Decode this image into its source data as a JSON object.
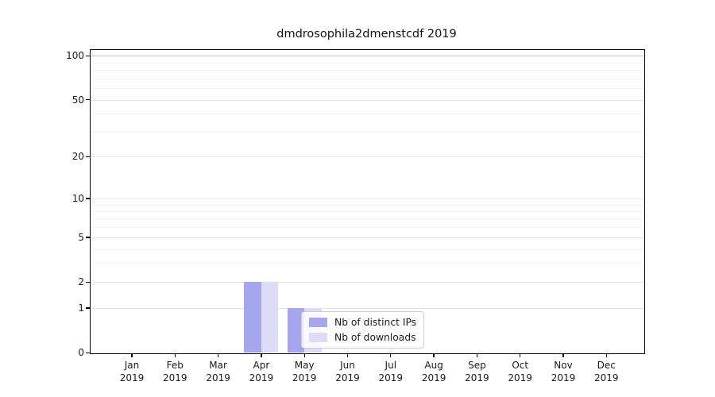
{
  "title": "dmdrosophila2dmenstcdf 2019",
  "chart_data": {
    "type": "bar",
    "title": "dmdrosophila2dmenstcdf 2019",
    "categories": [
      "Jan",
      "Feb",
      "Mar",
      "Apr",
      "May",
      "Jun",
      "Jul",
      "Aug",
      "Sep",
      "Oct",
      "Nov",
      "Dec"
    ],
    "category_year": "2019",
    "series": [
      {
        "name": "Nb of distinct IPs",
        "color": "#a6a6ef",
        "values": [
          0,
          0,
          0,
          2,
          1,
          0,
          0,
          0,
          0,
          0,
          0,
          0
        ]
      },
      {
        "name": "Nb of downloads",
        "color": "#dcdcf8",
        "values": [
          0,
          0,
          0,
          2,
          1,
          0,
          0,
          0,
          0,
          0,
          0,
          0
        ]
      }
    ],
    "y_axis": {
      "scale": "log10(1+x)",
      "ticks": [
        0,
        1,
        2,
        5,
        10,
        20,
        50,
        100
      ],
      "minor_gridlines": [
        3,
        4,
        6,
        7,
        8,
        9,
        30,
        40,
        60,
        70,
        80,
        90
      ],
      "ylim": [
        0,
        100
      ]
    },
    "x_axis": {
      "label_line2": "2019"
    },
    "legend": {
      "position": "lower-center",
      "entries": [
        "Nb of distinct IPs",
        "Nb of downloads"
      ]
    },
    "grid": "horizontal",
    "colors": {
      "spine": "#000000",
      "major_grid": "#e4e4e4",
      "minor_grid": "#f2f2f2"
    }
  }
}
